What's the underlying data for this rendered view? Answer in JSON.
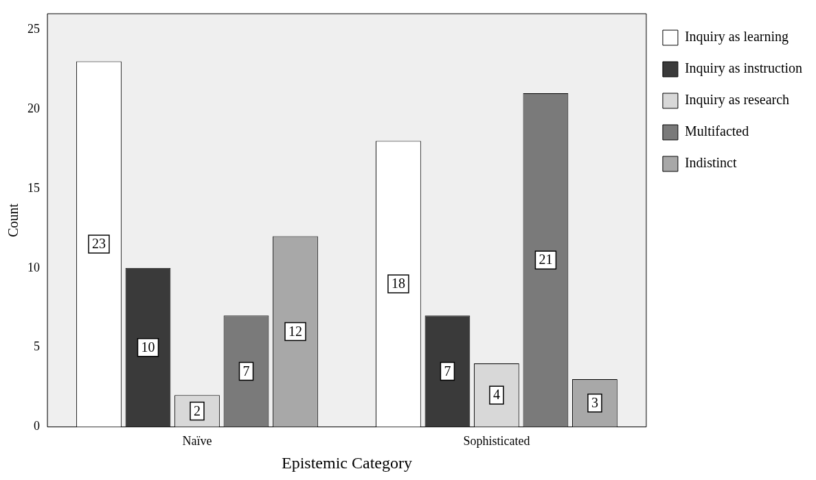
{
  "chart_data": {
    "type": "bar",
    "xlabel": "Epistemic Category",
    "ylabel": "Count",
    "categories": [
      "Naïve",
      "Sophisticated"
    ],
    "series": [
      {
        "name": "Inquiry as learning",
        "color": "#ffffff",
        "values": [
          23,
          18
        ]
      },
      {
        "name": "Inquiry as instruction",
        "color": "#3a3a3a",
        "values": [
          10,
          7
        ]
      },
      {
        "name": "Inquiry as research",
        "color": "#d8d8d8",
        "values": [
          2,
          4
        ]
      },
      {
        "name": "Multifacted",
        "color": "#7a7a7a",
        "values": [
          7,
          21
        ]
      },
      {
        "name": "Indistinct",
        "color": "#a8a8a8",
        "values": [
          12,
          3
        ]
      }
    ],
    "ylim": [
      0,
      26
    ],
    "yticks": [
      0,
      5,
      10,
      15,
      20,
      25
    ],
    "grid": false,
    "legend": "right",
    "data_labels": true
  }
}
